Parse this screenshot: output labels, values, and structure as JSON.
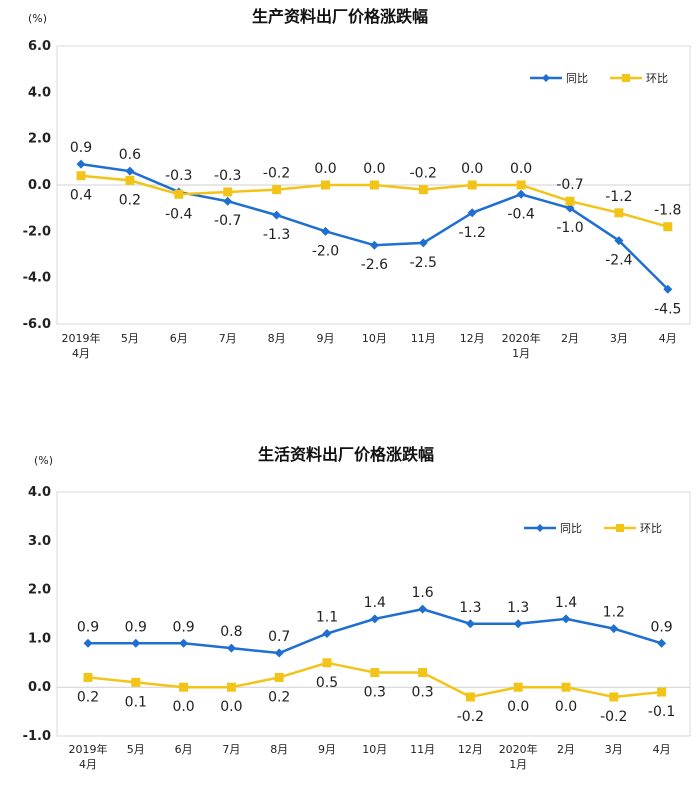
{
  "chart_data": [
    {
      "type": "line",
      "title": "生产资料出厂价格涨跌幅",
      "unit": "(%)",
      "categories": [
        [
          "2019年",
          "4月"
        ],
        [
          "5月"
        ],
        [
          "6月"
        ],
        [
          "7月"
        ],
        [
          "8月"
        ],
        [
          "9月"
        ],
        [
          "10月"
        ],
        [
          "11月"
        ],
        [
          "12月"
        ],
        [
          "2020年",
          "1月"
        ],
        [
          "2月"
        ],
        [
          "3月"
        ],
        [
          "4月"
        ]
      ],
      "ylim": [
        -6.0,
        6.0
      ],
      "yticks": [
        "6.0",
        "4.0",
        "2.0",
        "0.0",
        "-2.0",
        "-4.0",
        "-6.0"
      ],
      "legend_position": "top-right",
      "grid": false,
      "series": [
        {
          "name": "同比",
          "color": "#1f6fd1",
          "marker": "diamond",
          "values": [
            0.9,
            0.6,
            -0.3,
            -0.7,
            -1.3,
            -2.0,
            -2.6,
            -2.5,
            -1.2,
            -0.4,
            -1.0,
            -2.4,
            -4.5
          ],
          "labels": [
            "0.9",
            "0.6",
            "-0.3",
            "-0.7",
            "-1.3",
            "-2.0",
            "-2.6",
            "-2.5",
            "-1.2",
            "-0.4",
            "-1.0",
            "-2.4",
            "-4.5"
          ]
        },
        {
          "name": "环比",
          "color": "#f2c418",
          "marker": "square",
          "values": [
            0.4,
            0.2,
            -0.4,
            -0.3,
            -0.2,
            0.0,
            0.0,
            -0.2,
            0.0,
            0.0,
            -0.7,
            -1.2,
            -1.8
          ],
          "labels": [
            "0.4",
            "0.2",
            "-0.4",
            "-0.3",
            "-0.2",
            "0.0",
            "0.0",
            "-0.2",
            "0.0",
            "0.0",
            "-0.7",
            "-1.2",
            "-1.8"
          ]
        }
      ]
    },
    {
      "type": "line",
      "title": "生活资料出厂价格涨跌幅",
      "unit": "(%)",
      "categories": [
        [
          "2019年",
          "4月"
        ],
        [
          "5月"
        ],
        [
          "6月"
        ],
        [
          "7月"
        ],
        [
          "8月"
        ],
        [
          "9月"
        ],
        [
          "10月"
        ],
        [
          "11月"
        ],
        [
          "12月"
        ],
        [
          "2020年",
          "1月"
        ],
        [
          "2月"
        ],
        [
          "3月"
        ],
        [
          "4月"
        ]
      ],
      "ylim": [
        -1.0,
        4.0
      ],
      "yticks": [
        "4.0",
        "3.0",
        "2.0",
        "1.0",
        "0.0",
        "-1.0"
      ],
      "legend_position": "top-right",
      "grid": false,
      "series": [
        {
          "name": "同比",
          "color": "#1f6fd1",
          "marker": "diamond",
          "values": [
            0.9,
            0.9,
            0.9,
            0.8,
            0.7,
            1.1,
            1.4,
            1.6,
            1.3,
            1.3,
            1.4,
            1.2,
            0.9
          ],
          "labels": [
            "0.9",
            "0.9",
            "0.9",
            "0.8",
            "0.7",
            "1.1",
            "1.4",
            "1.6",
            "1.3",
            "1.3",
            "1.4",
            "1.2",
            "0.9"
          ]
        },
        {
          "name": "环比",
          "color": "#f2c418",
          "marker": "square",
          "values": [
            0.2,
            0.1,
            0.0,
            0.0,
            0.2,
            0.5,
            0.3,
            0.3,
            -0.2,
            0.0,
            0.0,
            -0.2,
            -0.1
          ],
          "labels": [
            "0.2",
            "0.1",
            "0.0",
            "0.0",
            "0.2",
            "0.5",
            "0.3",
            "0.3",
            "-0.2",
            "0.0",
            "0.0",
            "-0.2",
            "-0.1"
          ]
        }
      ]
    }
  ]
}
